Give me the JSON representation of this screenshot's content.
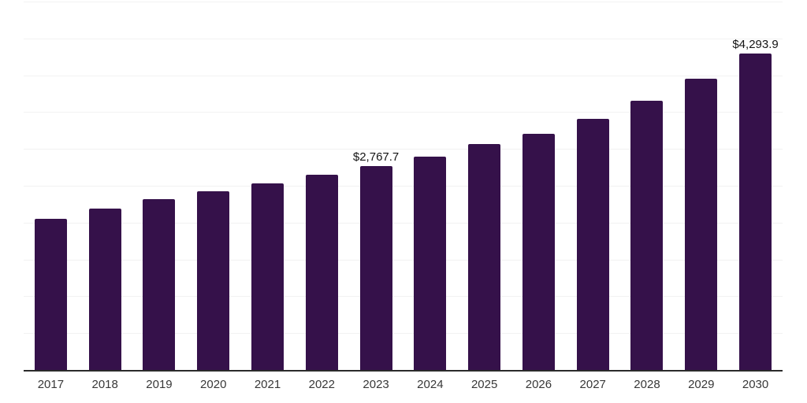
{
  "chart": {
    "background_color": "#ffffff",
    "bar_color": "#35114A",
    "gridline_color": "#f2f2f2",
    "axis_color": "#2b2b2b",
    "tick_label_color": "#383838",
    "value_label_color": "#141414"
  },
  "chart_data": {
    "type": "bar",
    "title": "",
    "xlabel": "",
    "ylabel": "",
    "categories": [
      "2017",
      "2018",
      "2019",
      "2020",
      "2021",
      "2022",
      "2023",
      "2024",
      "2025",
      "2026",
      "2027",
      "2028",
      "2029",
      "2030"
    ],
    "values": [
      2050,
      2190,
      2315,
      2425,
      2535,
      2650,
      2767.7,
      2900,
      3065,
      3205,
      3405,
      3650,
      3955,
      4293.9
    ],
    "data_labels": [
      "",
      "",
      "",
      "",
      "",
      "",
      "$2,767.7",
      "",
      "",
      "",
      "",
      "",
      "",
      "$4,293.9"
    ],
    "ylim": [
      0,
      5000
    ],
    "gridline_interval": 500,
    "grid": true,
    "y_axis_labels_visible": false,
    "legend_position": "none"
  }
}
